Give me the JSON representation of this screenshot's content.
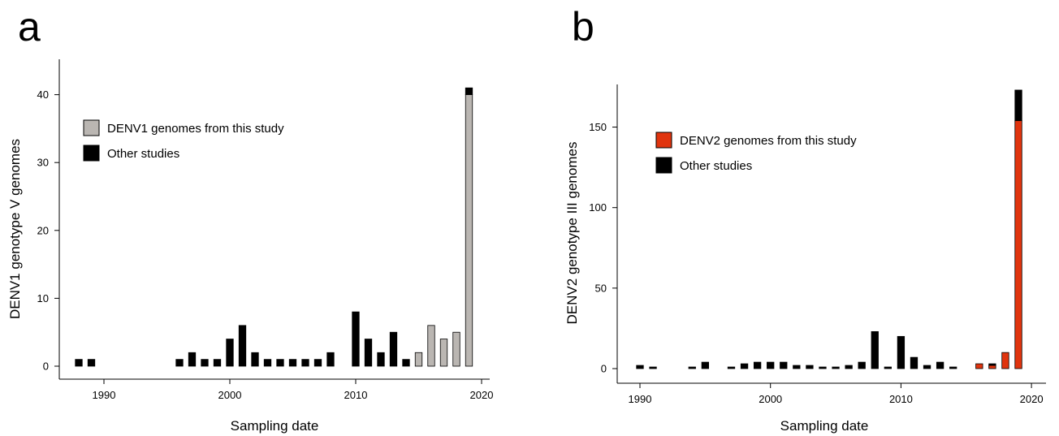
{
  "panels": [
    {
      "letter": "a"
    },
    {
      "letter": "b"
    }
  ],
  "chart_data": [
    {
      "type": "bar",
      "stacked": true,
      "xlabel": "Sampling date",
      "ylabel": "DENV1 genotype V genomes",
      "xlim": [
        1986.5,
        2020.5
      ],
      "ylim": [
        0,
        45
      ],
      "xticks": [
        1990,
        2000,
        2010,
        2020
      ],
      "yticks": [
        0,
        10,
        20,
        30,
        40
      ],
      "grid": false,
      "legend_position": "top-left",
      "x": [
        1988,
        1989,
        1996,
        1997,
        1998,
        1999,
        2000,
        2001,
        2002,
        2003,
        2004,
        2005,
        2006,
        2007,
        2008,
        2010,
        2011,
        2012,
        2013,
        2014,
        2015,
        2016,
        2017,
        2018,
        2019
      ],
      "series": [
        {
          "name": "DENV1 genomes from this study",
          "color": "#bab6b2",
          "values": [
            0,
            0,
            0,
            0,
            0,
            0,
            0,
            0,
            0,
            0,
            0,
            0,
            0,
            0,
            0,
            0,
            0,
            0,
            0,
            0,
            2,
            6,
            4,
            5,
            40
          ]
        },
        {
          "name": "Other studies",
          "color": "#000000",
          "values": [
            1,
            1,
            1,
            2,
            1,
            1,
            4,
            6,
            2,
            1,
            1,
            1,
            1,
            1,
            2,
            8,
            4,
            2,
            5,
            1,
            0,
            0,
            0,
            0,
            1
          ]
        }
      ]
    },
    {
      "type": "bar",
      "stacked": true,
      "xlabel": "Sampling date",
      "ylabel": "DENV2 genotype III genomes",
      "xlim": [
        1988,
        2020.5
      ],
      "ylim": [
        0,
        175
      ],
      "xticks": [
        1990,
        2000,
        2010,
        2020
      ],
      "yticks": [
        0,
        50,
        100,
        150
      ],
      "grid": false,
      "legend_position": "top-left",
      "x": [
        1990,
        1991,
        1994,
        1995,
        1997,
        1998,
        1999,
        2000,
        2001,
        2002,
        2003,
        2004,
        2005,
        2006,
        2007,
        2008,
        2009,
        2010,
        2011,
        2012,
        2013,
        2014,
        2016,
        2017,
        2018,
        2019
      ],
      "series": [
        {
          "name": "DENV2 genomes from this study",
          "color": "#e0340e",
          "values": [
            0,
            0,
            0,
            0,
            0,
            0,
            0,
            0,
            0,
            0,
            0,
            0,
            0,
            0,
            0,
            0,
            0,
            0,
            0,
            0,
            0,
            0,
            3,
            2,
            10,
            154
          ]
        },
        {
          "name": "Other studies",
          "color": "#000000",
          "values": [
            2,
            1,
            1,
            4,
            1,
            3,
            4,
            4,
            4,
            2,
            2,
            1,
            1,
            2,
            4,
            23,
            1,
            20,
            7,
            2,
            4,
            1,
            0,
            1,
            0,
            19
          ]
        }
      ]
    }
  ]
}
